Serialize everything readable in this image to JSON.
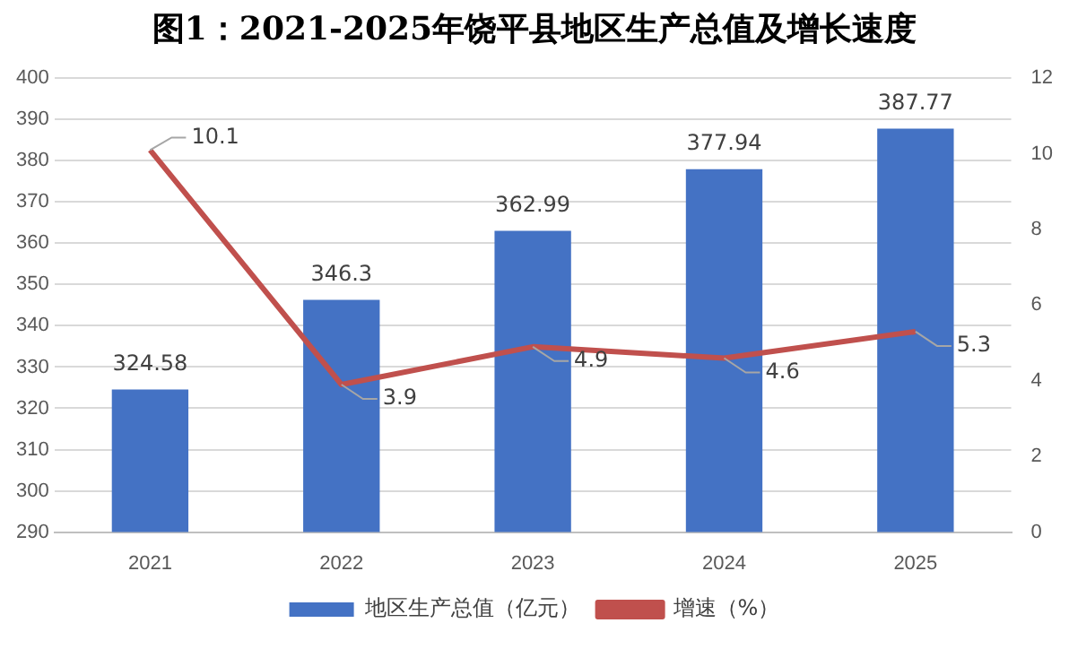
{
  "chart_data": {
    "type": "bar",
    "title": "图1：2021-2025年饶平县地区生产总值及增长速度",
    "categories": [
      "2021",
      "2022",
      "2023",
      "2024",
      "2025"
    ],
    "series": [
      {
        "name": "地区生产总值（亿元）",
        "color": "#4472c4",
        "values": [
          324.58,
          346.3,
          362.99,
          377.94,
          387.77
        ]
      },
      {
        "name": "增速（%）",
        "type": "line",
        "axis": "y2",
        "color": "#c0504d",
        "values": [
          10.1,
          3.9,
          4.9,
          4.6,
          5.3
        ]
      }
    ],
    "ylim": [
      290,
      400
    ],
    "yticks": [
      290,
      300,
      310,
      320,
      330,
      340,
      350,
      360,
      370,
      380,
      390,
      400
    ],
    "y2lim": [
      0,
      12
    ],
    "y2ticks": [
      0,
      2,
      4,
      6,
      8,
      10,
      12
    ],
    "grid": "y",
    "legend": "bottom",
    "marker": "none",
    "line_style": "solid",
    "data_labels": true
  }
}
